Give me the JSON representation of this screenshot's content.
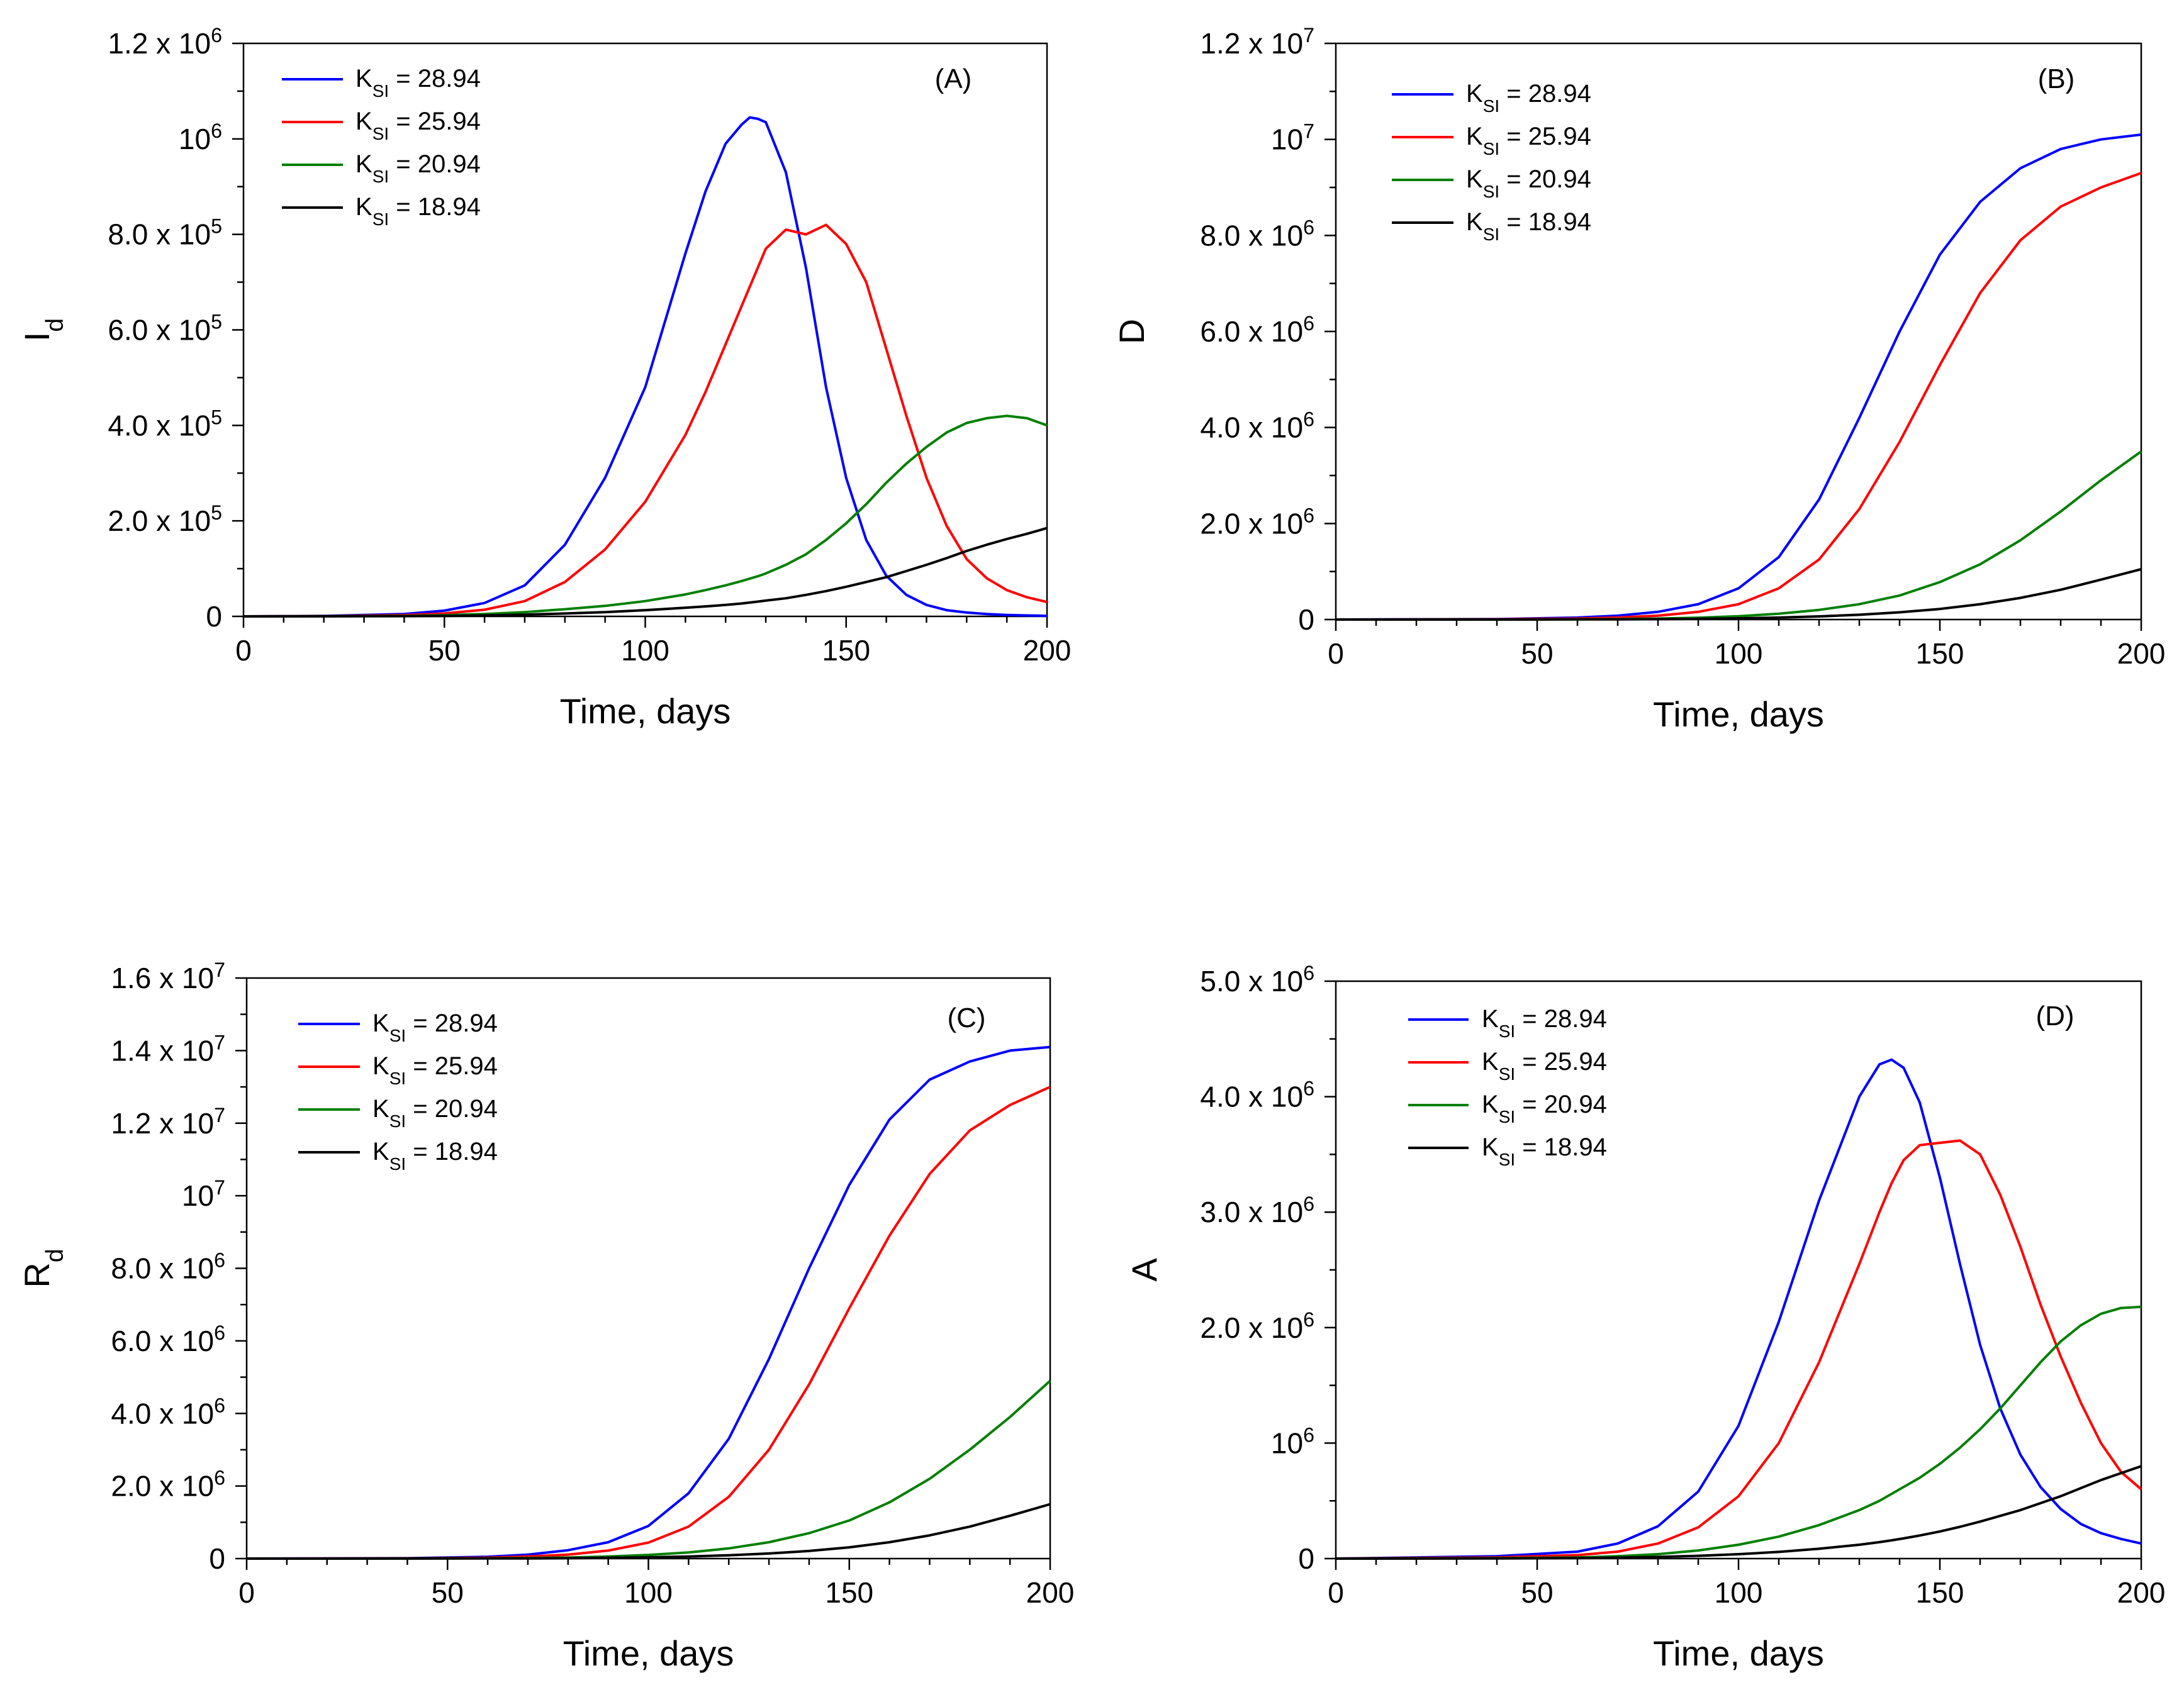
{
  "legend_labels": [
    {
      "main": "K",
      "sub": "SI",
      "rest": " = 28.94"
    },
    {
      "main": "K",
      "sub": "SI",
      "rest": " = 25.94"
    },
    {
      "main": "K",
      "sub": "SI",
      "rest": " = 20.94"
    },
    {
      "main": "K",
      "sub": "SI",
      "rest": " = 18.94"
    }
  ],
  "series_colors": [
    "#0000ff",
    "#ff0000",
    "#008000",
    "#000000"
  ],
  "chart_data": [
    {
      "type": "line",
      "panel_tag": "(A)",
      "ylabel": {
        "main": "I",
        "sub": "d"
      },
      "xlabel": "Time, days",
      "xlim": [
        0,
        200
      ],
      "xticks": [
        0,
        50,
        100,
        150,
        200
      ],
      "xtick_labels": [
        "0",
        "50",
        "100",
        "150",
        "200"
      ],
      "ylim": [
        0,
        1200000
      ],
      "yticks": [
        0,
        200000,
        400000,
        600000,
        800000,
        1000000,
        1200000
      ],
      "ytick_labels": [
        {
          "m": "0",
          "e": ""
        },
        {
          "m": "2.0 x 10",
          "e": "5"
        },
        {
          "m": "4.0 x 10",
          "e": "5"
        },
        {
          "m": "6.0 x 10",
          "e": "5"
        },
        {
          "m": "8.0 x 10",
          "e": "5"
        },
        {
          "m": "10",
          "e": "6"
        },
        {
          "m": "1.2 x 10",
          "e": "6"
        }
      ],
      "legend_position": "top-left",
      "x": [
        0,
        20,
        40,
        50,
        60,
        70,
        80,
        90,
        100,
        110,
        115,
        120,
        124,
        126,
        128,
        130,
        135,
        140,
        145,
        150,
        155,
        160,
        165,
        170,
        175,
        180,
        185,
        190,
        195,
        200
      ],
      "series": [
        {
          "values": [
            0,
            1000,
            5000,
            12000,
            28000,
            65000,
            150000,
            290000,
            480000,
            760000,
            890000,
            990000,
            1030000,
            1045000,
            1042000,
            1035000,
            930000,
            730000,
            480000,
            290000,
            160000,
            85000,
            45000,
            24000,
            13000,
            8000,
            5000,
            3000,
            2000,
            1000
          ]
        },
        {
          "values": [
            0,
            500,
            2500,
            6000,
            14000,
            32000,
            72000,
            140000,
            240000,
            380000,
            470000,
            570000,
            650000,
            690000,
            730000,
            770000,
            810000,
            800000,
            820000,
            780000,
            700000,
            560000,
            420000,
            290000,
            190000,
            120000,
            80000,
            55000,
            40000,
            30000
          ]
        },
        {
          "values": [
            0,
            200,
            1000,
            2500,
            5000,
            9000,
            15000,
            22000,
            32000,
            46000,
            55000,
            65000,
            74000,
            79000,
            84000,
            90000,
            108000,
            130000,
            160000,
            195000,
            235000,
            280000,
            320000,
            355000,
            385000,
            405000,
            415000,
            420000,
            415000,
            400000
          ]
        },
        {
          "values": [
            0,
            100,
            500,
            1000,
            2000,
            3500,
            6000,
            9000,
            13000,
            18000,
            21000,
            24000,
            27000,
            29000,
            31000,
            33000,
            38000,
            45000,
            53000,
            62000,
            72000,
            82000,
            95000,
            108000,
            122000,
            137000,
            150000,
            162000,
            173000,
            185000
          ]
        }
      ]
    },
    {
      "type": "line",
      "panel_tag": "(B)",
      "ylabel": {
        "main": "D",
        "sub": ""
      },
      "xlabel": "Time, days",
      "xlim": [
        0,
        200
      ],
      "xticks": [
        0,
        50,
        100,
        150,
        200
      ],
      "xtick_labels": [
        "0",
        "50",
        "100",
        "150",
        "200"
      ],
      "ylim": [
        0,
        12000000
      ],
      "yticks": [
        0,
        2000000,
        4000000,
        6000000,
        8000000,
        10000000,
        12000000
      ],
      "ytick_labels": [
        {
          "m": "0",
          "e": ""
        },
        {
          "m": "2.0 x 10",
          "e": "6"
        },
        {
          "m": "4.0 x 10",
          "e": "6"
        },
        {
          "m": "6.0 x 10",
          "e": "6"
        },
        {
          "m": "8.0 x 10",
          "e": "6"
        },
        {
          "m": "10",
          "e": "7"
        },
        {
          "m": "1.2 x 10",
          "e": "7"
        }
      ],
      "legend_position": "top-left",
      "x": [
        0,
        40,
        60,
        70,
        80,
        90,
        100,
        110,
        120,
        130,
        140,
        150,
        160,
        170,
        180,
        190,
        200
      ],
      "series": [
        {
          "values": [
            0,
            10000,
            40000,
            80000,
            160000,
            320000,
            650000,
            1300000,
            2500000,
            4200000,
            6000000,
            7600000,
            8700000,
            9400000,
            9800000,
            10000000,
            10100000
          ]
        },
        {
          "values": [
            0,
            5000,
            20000,
            40000,
            80000,
            160000,
            320000,
            650000,
            1250000,
            2300000,
            3700000,
            5300000,
            6800000,
            7900000,
            8600000,
            9000000,
            9300000
          ]
        },
        {
          "values": [
            0,
            1000,
            5000,
            10000,
            20000,
            38000,
            70000,
            120000,
            200000,
            320000,
            500000,
            780000,
            1150000,
            1650000,
            2250000,
            2900000,
            3500000
          ]
        },
        {
          "values": [
            0,
            500,
            2000,
            4000,
            8000,
            14000,
            25000,
            40000,
            65000,
            100000,
            150000,
            220000,
            320000,
            450000,
            620000,
            830000,
            1050000
          ]
        }
      ]
    },
    {
      "type": "line",
      "panel_tag": "(C)",
      "ylabel": {
        "main": "R",
        "sub": "d"
      },
      "xlabel": "Time, days",
      "xlim": [
        0,
        200
      ],
      "xticks": [
        0,
        50,
        100,
        150,
        200
      ],
      "xtick_labels": [
        "0",
        "50",
        "100",
        "150",
        "200"
      ],
      "ylim": [
        0,
        16000000
      ],
      "yticks": [
        0,
        2000000,
        4000000,
        6000000,
        8000000,
        10000000,
        12000000,
        14000000,
        16000000
      ],
      "ytick_labels": [
        {
          "m": "0",
          "e": ""
        },
        {
          "m": "2.0 x 10",
          "e": "6"
        },
        {
          "m": "4.0 x 10",
          "e": "6"
        },
        {
          "m": "6.0 x 10",
          "e": "6"
        },
        {
          "m": "8.0 x 10",
          "e": "6"
        },
        {
          "m": "10",
          "e": "7"
        },
        {
          "m": "1.2 x 10",
          "e": "7"
        },
        {
          "m": "1.4 x 10",
          "e": "7"
        },
        {
          "m": "1.6 x 10",
          "e": "7"
        }
      ],
      "legend_position": "top-left",
      "x": [
        0,
        40,
        60,
        70,
        80,
        90,
        100,
        110,
        120,
        130,
        140,
        150,
        160,
        170,
        180,
        190,
        200
      ],
      "series": [
        {
          "values": [
            0,
            10000,
            50000,
            110000,
            230000,
            450000,
            900000,
            1800000,
            3300000,
            5500000,
            8000000,
            10300000,
            12100000,
            13200000,
            13700000,
            14000000,
            14100000
          ]
        },
        {
          "values": [
            0,
            5000,
            25000,
            55000,
            110000,
            220000,
            440000,
            880000,
            1700000,
            3000000,
            4800000,
            6900000,
            8900000,
            10600000,
            11800000,
            12500000,
            13000000
          ]
        },
        {
          "values": [
            0,
            2000,
            8000,
            15000,
            28000,
            55000,
            100000,
            170000,
            280000,
            450000,
            700000,
            1050000,
            1550000,
            2200000,
            3000000,
            3900000,
            4900000
          ]
        },
        {
          "values": [
            0,
            1000,
            3000,
            6000,
            11000,
            20000,
            35000,
            58000,
            92000,
            140000,
            210000,
            310000,
            450000,
            640000,
            880000,
            1180000,
            1500000
          ]
        }
      ]
    },
    {
      "type": "line",
      "panel_tag": "(D)",
      "ylabel": {
        "main": "A",
        "sub": ""
      },
      "xlabel": "Time, days",
      "xlim": [
        0,
        200
      ],
      "xticks": [
        0,
        50,
        100,
        150,
        200
      ],
      "xtick_labels": [
        "0",
        "50",
        "100",
        "150",
        "200"
      ],
      "ylim": [
        0,
        5000000
      ],
      "yticks": [
        0,
        1000000,
        2000000,
        3000000,
        4000000,
        5000000
      ],
      "ytick_labels": [
        {
          "m": "0",
          "e": ""
        },
        {
          "m": "10",
          "e": "6"
        },
        {
          "m": "2.0 x 10",
          "e": "6"
        },
        {
          "m": "3.0 x 10",
          "e": "6"
        },
        {
          "m": "4.0 x 10",
          "e": "6"
        },
        {
          "m": "5.0 x 10",
          "e": "6"
        }
      ],
      "legend_position": "top-left",
      "x": [
        0,
        40,
        60,
        70,
        80,
        90,
        100,
        110,
        120,
        130,
        135,
        138,
        141,
        145,
        150,
        155,
        160,
        165,
        170,
        175,
        180,
        185,
        190,
        195,
        200
      ],
      "series": [
        {
          "values": [
            0,
            20000,
            60000,
            130000,
            280000,
            580000,
            1150000,
            2050000,
            3100000,
            4000000,
            4280000,
            4320000,
            4250000,
            3950000,
            3300000,
            2550000,
            1850000,
            1300000,
            900000,
            620000,
            430000,
            300000,
            220000,
            170000,
            130000
          ]
        },
        {
          "values": [
            0,
            10000,
            30000,
            60000,
            130000,
            270000,
            540000,
            1000000,
            1700000,
            2550000,
            3000000,
            3250000,
            3450000,
            3580000,
            3600000,
            3620000,
            3500000,
            3150000,
            2700000,
            2200000,
            1750000,
            1350000,
            1000000,
            750000,
            600000
          ]
        },
        {
          "values": [
            0,
            3000,
            10000,
            20000,
            38000,
            70000,
            120000,
            190000,
            290000,
            420000,
            500000,
            560000,
            620000,
            700000,
            820000,
            960000,
            1120000,
            1300000,
            1500000,
            1700000,
            1880000,
            2020000,
            2120000,
            2170000,
            2180000
          ]
        },
        {
          "values": [
            0,
            1000,
            4000,
            8000,
            14000,
            24000,
            38000,
            58000,
            85000,
            120000,
            142000,
            158000,
            175000,
            200000,
            235000,
            275000,
            320000,
            370000,
            420000,
            480000,
            540000,
            610000,
            680000,
            740000,
            800000
          ]
        }
      ]
    }
  ]
}
